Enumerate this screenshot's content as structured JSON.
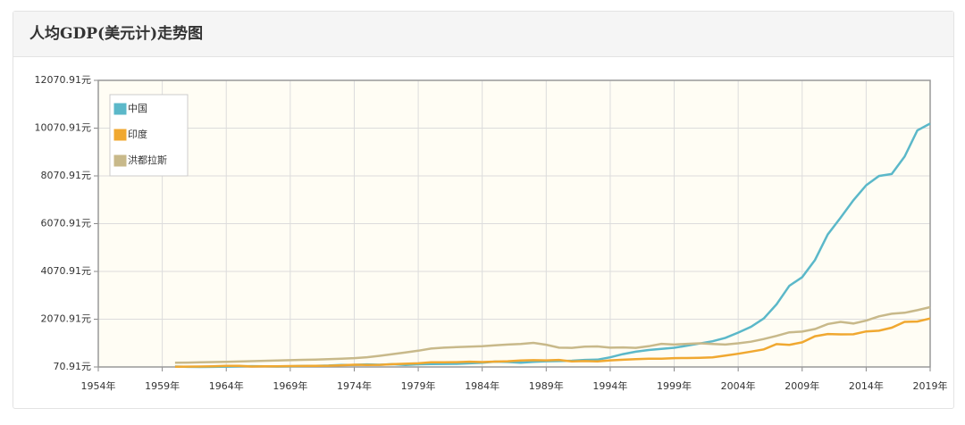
{
  "chart_data": {
    "type": "line",
    "title": "人均GDP(美元计)走势图",
    "x": [
      1960,
      1961,
      1962,
      1963,
      1964,
      1965,
      1966,
      1967,
      1968,
      1969,
      1970,
      1971,
      1972,
      1973,
      1974,
      1975,
      1976,
      1977,
      1978,
      1979,
      1980,
      1981,
      1982,
      1983,
      1984,
      1985,
      1986,
      1987,
      1988,
      1989,
      1990,
      1991,
      1992,
      1993,
      1994,
      1995,
      1996,
      1997,
      1998,
      1999,
      2000,
      2001,
      2002,
      2003,
      2004,
      2005,
      2006,
      2007,
      2008,
      2009,
      2010,
      2011,
      2012,
      2013,
      2014,
      2015,
      2016,
      2017,
      2018,
      2019
    ],
    "series": [
      {
        "name": "中国",
        "color": "#5bb8c9",
        "values": [
          90,
          76,
          70,
          74,
          85,
          98,
          104,
          96,
          91,
          100,
          113,
          119,
          131,
          157,
          160,
          178,
          165,
          185,
          156,
          184,
          195,
          197,
          203,
          225,
          251,
          294,
          282,
          252,
          283,
          310,
          318,
          333,
          366,
          377,
          473,
          610,
          709,
          782,
          829,
          873,
          959,
          1053,
          1149,
          1289,
          1509,
          1753,
          2099,
          2694,
          3468,
          3832,
          4550,
          5618,
          6317,
          7051,
          7679,
          8067,
          8148,
          8879,
          9977,
          10262
        ]
      },
      {
        "name": "印度",
        "color": "#f0a830",
        "values": [
          82,
          85,
          89,
          101,
          116,
          119,
          89,
          96,
          99,
          107,
          112,
          118,
          122,
          143,
          163,
          158,
          161,
          186,
          206,
          224,
          267,
          270,
          274,
          291,
          277,
          296,
          310,
          340,
          354,
          346,
          368,
          303,
          317,
          301,
          346,
          373,
          399,
          415,
          413,
          441,
          443,
          452,
          470,
          547,
          623,
          714,
          806,
          1028,
          999,
          1102,
          1358,
          1450,
          1434,
          1438,
          1560,
          1590,
          1714,
          1958,
          1974,
          2101
        ]
      },
      {
        "name": "洪都拉斯",
        "color": "#c8b98a",
        "values": [
          250,
          255,
          265,
          275,
          285,
          300,
          315,
          330,
          345,
          355,
          370,
          380,
          395,
          420,
          440,
          480,
          540,
          610,
          680,
          750,
          840,
          880,
          900,
          920,
          940,
          980,
          1010,
          1030,
          1080,
          1000,
          880,
          870,
          920,
          930,
          880,
          890,
          870,
          940,
          1040,
          1010,
          1040,
          1060,
          1030,
          1010,
          1060,
          1130,
          1240,
          1370,
          1520,
          1550,
          1660,
          1870,
          1960,
          1890,
          2010,
          2190,
          2300,
          2340,
          2450,
          2575
        ]
      }
    ],
    "xlim": [
      1954,
      2019
    ],
    "xticks": [
      {
        "value": 1954,
        "label": "1954年"
      },
      {
        "value": 1959,
        "label": "1959年"
      },
      {
        "value": 1964,
        "label": "1964年"
      },
      {
        "value": 1969,
        "label": "1969年"
      },
      {
        "value": 1974,
        "label": "1974年"
      },
      {
        "value": 1979,
        "label": "1979年"
      },
      {
        "value": 1984,
        "label": "1984年"
      },
      {
        "value": 1989,
        "label": "1989年"
      },
      {
        "value": 1994,
        "label": "1994年"
      },
      {
        "value": 1999,
        "label": "1999年"
      },
      {
        "value": 2004,
        "label": "2004年"
      },
      {
        "value": 2009,
        "label": "2009年"
      },
      {
        "value": 2014,
        "label": "2014年"
      },
      {
        "value": 2019,
        "label": "2019年"
      }
    ],
    "ylim": [
      70.91,
      12070.91
    ],
    "yticks": [
      {
        "value": 70.91,
        "label": "70.91元"
      },
      {
        "value": 2070.91,
        "label": "2070.91元"
      },
      {
        "value": 4070.91,
        "label": "4070.91元"
      },
      {
        "value": 6070.91,
        "label": "6070.91元"
      },
      {
        "value": 8070.91,
        "label": "8070.91元"
      },
      {
        "value": 10070.91,
        "label": "10070.91元"
      },
      {
        "value": 12070.91,
        "label": "12070.91元"
      }
    ],
    "grid": true,
    "legend": "top-left"
  }
}
